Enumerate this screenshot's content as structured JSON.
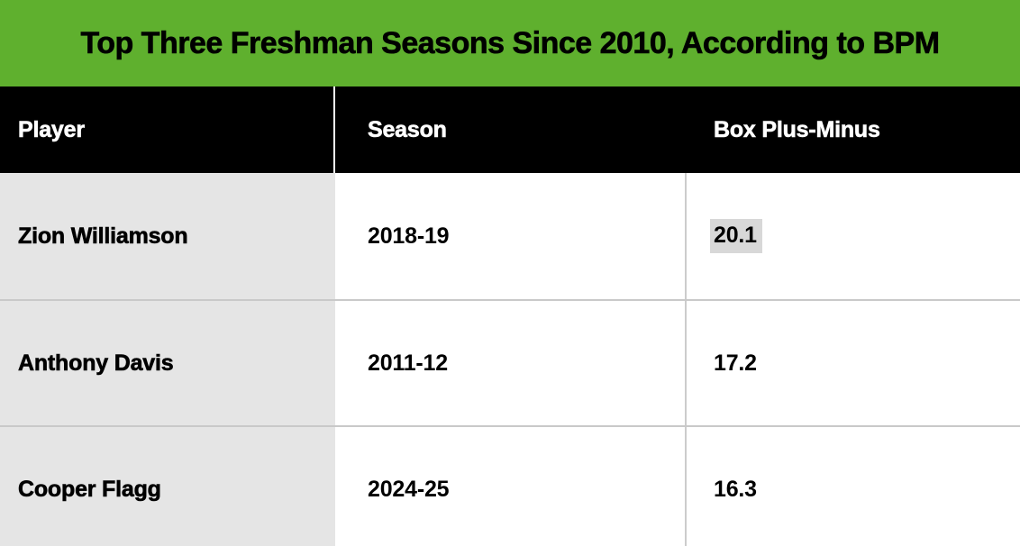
{
  "title": "Top Three Freshman Seasons Since 2010, According to BPM",
  "columns": {
    "player": "Player",
    "season": "Season",
    "bpm": "Box Plus-Minus"
  },
  "rows": [
    {
      "player": "Zion Williamson",
      "season": "2018-19",
      "bpm": "20.1",
      "bpm_selected": true
    },
    {
      "player": "Anthony Davis",
      "season": "2011-12",
      "bpm": "17.2",
      "bpm_selected": false
    },
    {
      "player": "Cooper Flagg",
      "season": "2024-25",
      "bpm": "16.3",
      "bpm_selected": false
    }
  ],
  "colors": {
    "accent_green": "#5fb02e",
    "header_bg": "#000000",
    "header_text": "#ffffff",
    "player_col_bg": "#e5e5e5",
    "row_divider": "#c9c9c9",
    "col_divider": "#cccccc",
    "header_divider": "#ffffff",
    "selection_highlight": "#d8d8d8",
    "text": "#000000"
  },
  "chart_data": {
    "type": "table",
    "title": "Top Three Freshman Seasons Since 2010, According to BPM",
    "columns": [
      "Player",
      "Season",
      "Box Plus-Minus"
    ],
    "rows": [
      [
        "Zion Williamson",
        "2018-19",
        20.1
      ],
      [
        "Anthony Davis",
        "2011-12",
        17.2
      ],
      [
        "Cooper Flagg",
        "2024-25",
        16.3
      ]
    ]
  }
}
